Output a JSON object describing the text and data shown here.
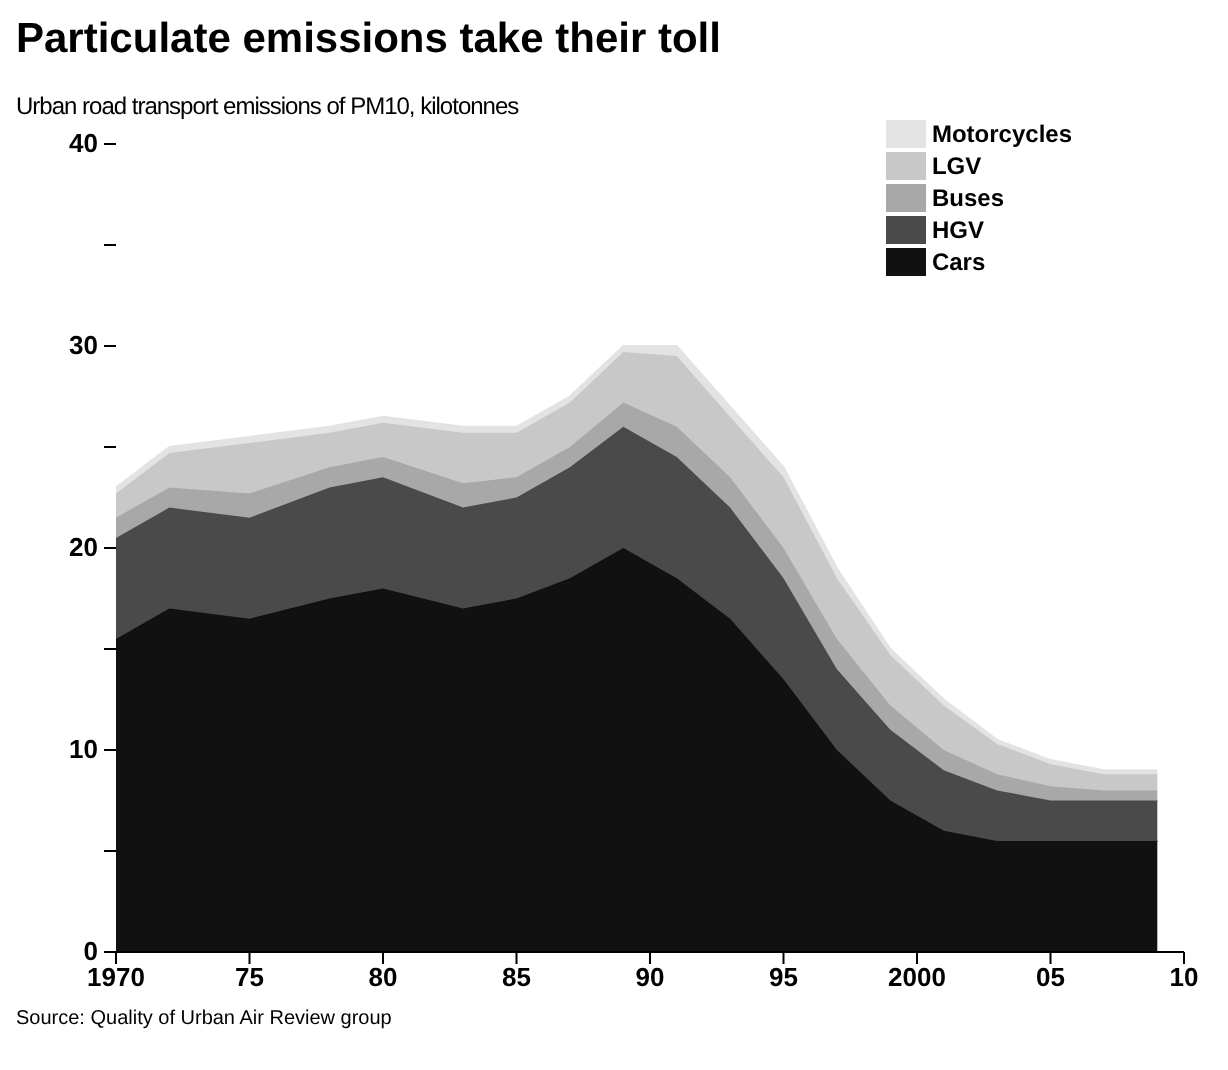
{
  "chart_data": {
    "type": "area",
    "title": "Particulate emissions take their toll",
    "subtitle": "Urban road transport emissions of PM10, kilotonnes",
    "annotations": [
      "Source: Quality of Urban Air Review group"
    ],
    "x": [
      1970,
      1972,
      1975,
      1978,
      1980,
      1983,
      1985,
      1987,
      1989,
      1991,
      1993,
      1995,
      1997,
      1999,
      2001,
      2003,
      2005,
      2007,
      2009
    ],
    "stacked": true,
    "series": [
      {
        "name": "Cars",
        "color": "#111111",
        "values": [
          15.5,
          17,
          16.5,
          17.5,
          18,
          17,
          17.5,
          18.5,
          20,
          18.5,
          16.5,
          13.5,
          10,
          7.5,
          6,
          5.5,
          5.5,
          5.5,
          5.5
        ]
      },
      {
        "name": "HGV",
        "color": "#4a4a4a",
        "values": [
          5,
          5,
          5,
          5.5,
          5.5,
          5,
          5,
          5.5,
          6,
          6,
          5.5,
          5,
          4,
          3.5,
          3,
          2.5,
          2,
          2,
          2
        ]
      },
      {
        "name": "Buses",
        "color": "#a8a8a8",
        "values": [
          1,
          1,
          1.2,
          1,
          1,
          1.2,
          1,
          1,
          1.2,
          1.5,
          1.5,
          1.5,
          1.5,
          1.2,
          1,
          0.8,
          0.7,
          0.5,
          0.5
        ]
      },
      {
        "name": "LGV",
        "color": "#c8c8c8",
        "values": [
          1.2,
          1.7,
          2.5,
          1.7,
          1.7,
          2.5,
          2.2,
          2.2,
          2.5,
          3.5,
          3,
          3.5,
          3,
          2.5,
          2.2,
          1.5,
          1.1,
          0.8,
          0.8
        ]
      },
      {
        "name": "Motorcycles",
        "color": "#e3e3e3",
        "values": [
          0.3,
          0.3,
          0.3,
          0.3,
          0.3,
          0.3,
          0.3,
          0.3,
          0.3,
          0.5,
          0.5,
          0.5,
          0.5,
          0.3,
          0.3,
          0.2,
          0.2,
          0.2,
          0.2
        ]
      }
    ],
    "xlim": [
      1970,
      2010
    ],
    "xticks": [
      1970,
      {
        "value": 1975,
        "label": "75"
      },
      {
        "value": 1980,
        "label": "80"
      },
      {
        "value": 1985,
        "label": "85"
      },
      2000,
      {
        "value": 2005,
        "label": "05"
      },
      {
        "value": 2010,
        "label": "10"
      },
      {
        "value": 1990,
        "label": "90"
      },
      {
        "value": 1995,
        "label": "95"
      }
    ],
    "ylim": [
      0,
      40
    ],
    "yticks": [
      0,
      {
        "value": 5,
        "label": null
      },
      10,
      {
        "value": 15,
        "label": null
      },
      20,
      {
        "value": 25,
        "label": null
      },
      30,
      {
        "value": 35,
        "label": null
      },
      40
    ],
    "grid": false,
    "legend": "top right"
  }
}
